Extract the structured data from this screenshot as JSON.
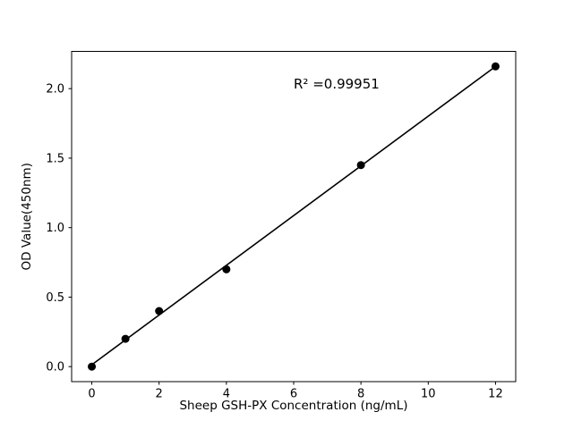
{
  "figure": {
    "background": "#ffffff"
  },
  "chart_data": {
    "type": "scatter",
    "title": "",
    "xlabel": "Sheep GSH-PX Concentration (ng/mL)",
    "ylabel": "OD Value(450nm)",
    "x": [
      0,
      1,
      2,
      4,
      8,
      12
    ],
    "y": [
      0.0,
      0.2,
      0.4,
      0.7,
      1.45,
      2.16
    ],
    "has_fit_line": true,
    "annotation": {
      "text": "R² =0.99951",
      "x": 6.0,
      "y": 2.0
    },
    "xticks": [
      0,
      2,
      4,
      6,
      8,
      10,
      12
    ],
    "xtick_labels": [
      "0",
      "2",
      "4",
      "6",
      "8",
      "10",
      "12"
    ],
    "yticks": [
      0.0,
      0.5,
      1.0,
      1.5,
      2.0
    ],
    "ytick_labels": [
      "0.0",
      "0.5",
      "1.0",
      "1.5",
      "2.0"
    ],
    "xlim": [
      -0.6,
      12.6
    ],
    "ylim": [
      -0.108,
      2.268
    ],
    "grid": false,
    "legend": null,
    "marker_color": "#000000",
    "line_color": "#000000",
    "axis_color": "#000000"
  }
}
